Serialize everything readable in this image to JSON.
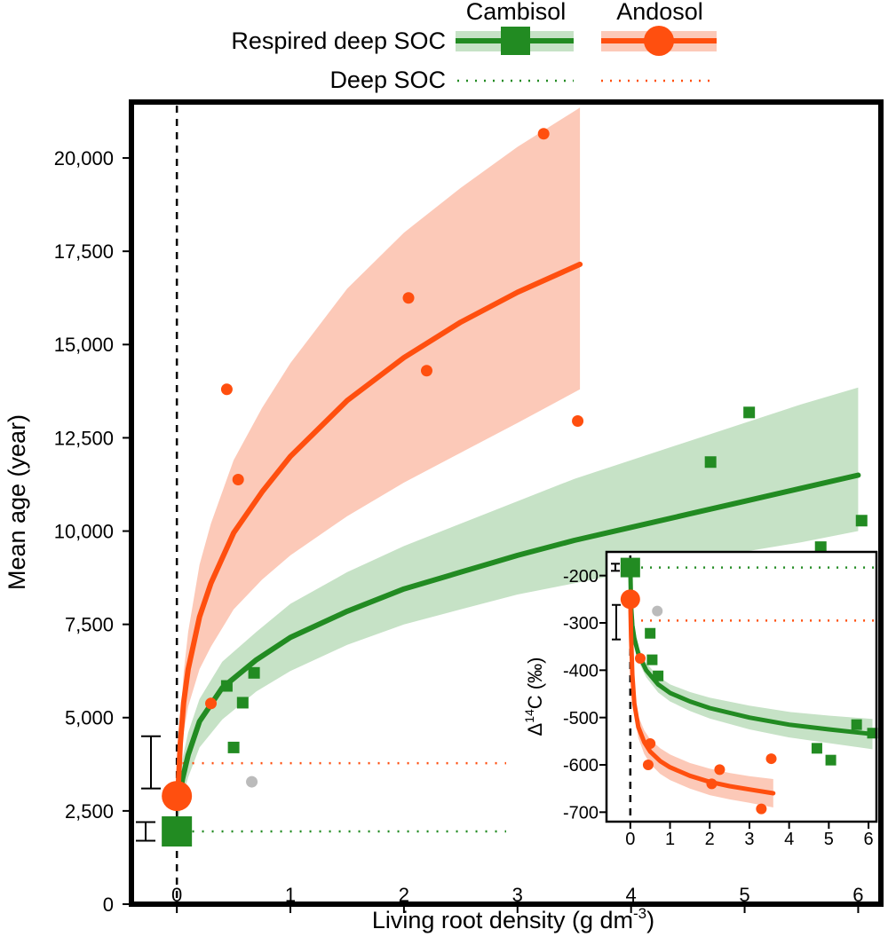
{
  "legend": {
    "header_cambisol": "Cambisol",
    "header_andosol": "Andosol",
    "row1_label": "Respired deep SOC",
    "row2_label": "Deep SOC",
    "placement": "top"
  },
  "colors": {
    "cambisol": "#228b22",
    "cambisol_band": "#c6e2c6",
    "andosol": "#ff4f0f",
    "andosol_band": "#fcc9b8",
    "outlier": "#bbbbbb"
  },
  "chart_data": [
    {
      "type": "scatter",
      "panel": "main",
      "xlabel": "Living root density (g dm",
      "xlabel_sup": "-3",
      "xlabel_close": ")",
      "ylabel": "Mean age (year)",
      "xlim": [
        -0.4,
        6.2
      ],
      "ylim": [
        0,
        21500
      ],
      "x_ticks": [
        0,
        1,
        2,
        3,
        4,
        5,
        6
      ],
      "x_tick_labels": [
        "0",
        "1",
        "2",
        "3",
        "4",
        "5",
        "6"
      ],
      "y_ticks": [
        0,
        2500,
        5000,
        7500,
        10000,
        12500,
        15000,
        17500,
        20000
      ],
      "y_tick_labels": [
        "0",
        "2,500",
        "5,000",
        "7,500",
        "10,000",
        "12,500",
        "15,000",
        "17,500",
        "20,000"
      ],
      "grid": false,
      "series": [
        {
          "name": "Cambisol",
          "marker": "square",
          "points": [
            [
              0.44,
              5850
            ],
            [
              0.58,
              5400
            ],
            [
              0.68,
              6200
            ],
            [
              0.5,
              4200
            ],
            [
              4.7,
              11850
            ],
            [
              5.04,
              13180
            ],
            [
              5.67,
              9570
            ],
            [
              6.03,
              10280
            ]
          ],
          "curve": {
            "x": [
              0.01,
              0.05,
              0.1,
              0.2,
              0.4,
              0.7,
              1.0,
              1.5,
              2.0,
              2.5,
              3.0,
              3.5,
              4.0,
              4.5,
              5.0,
              5.5,
              6.0
            ],
            "y": [
              2600,
              3350,
              4000,
              4900,
              5800,
              6550,
              7150,
              7850,
              8450,
              8900,
              9350,
              9750,
              10100,
              10450,
              10800,
              11150,
              11500
            ]
          },
          "band_upper": [
            3100,
            3900,
            4600,
            5500,
            6500,
            7300,
            8050,
            8900,
            9600,
            10200,
            10800,
            11400,
            11900,
            12400,
            12900,
            13400,
            13850
          ],
          "band_lower": [
            2200,
            2850,
            3400,
            4200,
            4950,
            5700,
            6250,
            6950,
            7500,
            7900,
            8300,
            8600,
            8900,
            9200,
            9450,
            9700,
            10000
          ],
          "intercept": {
            "x": 0.0,
            "y": 1950
          },
          "deep_soc_level": 1950,
          "error_bar": [
            1700,
            2200
          ]
        },
        {
          "name": "Andosol",
          "marker": "circle",
          "points": [
            [
              0.44,
              13800
            ],
            [
              0.54,
              11380
            ],
            [
              0.3,
              5380
            ],
            [
              2.04,
              16250
            ],
            [
              2.2,
              14300
            ],
            [
              3.23,
              20650
            ],
            [
              3.53,
              12950
            ]
          ],
          "curve": {
            "x": [
              0.01,
              0.03,
              0.06,
              0.1,
              0.2,
              0.3,
              0.5,
              0.75,
              1.0,
              1.5,
              2.0,
              2.5,
              3.0,
              3.55
            ],
            "y": [
              3000,
              4300,
              5400,
              6300,
              7700,
              8600,
              9950,
              11050,
              12000,
              13500,
              14650,
              15600,
              16400,
              17150
            ]
          },
          "band_upper": [
            3400,
            4900,
            6200,
            7300,
            9100,
            10200,
            11900,
            13300,
            14500,
            16500,
            18000,
            19200,
            20300,
            21350
          ],
          "band_lower": [
            2600,
            3700,
            4600,
            5300,
            6300,
            6900,
            7900,
            8700,
            9350,
            10400,
            11300,
            12100,
            12900,
            13800
          ],
          "intercept": {
            "x": 0.0,
            "y": 2900
          },
          "deep_soc_level": 3780,
          "error_bar": [
            3100,
            4500
          ]
        }
      ],
      "outliers": [
        [
          0.66,
          3280
        ]
      ]
    },
    {
      "type": "scatter",
      "panel": "inset",
      "ylabel_prefix": "Δ",
      "ylabel_sup": "14",
      "ylabel_suffix": "C (‰)",
      "xlim": [
        -0.6,
        6.2
      ],
      "ylim": [
        -720,
        -150
      ],
      "x_ticks": [
        0,
        1,
        2,
        3,
        4,
        5,
        6
      ],
      "x_tick_labels": [
        "0",
        "1",
        "2",
        "3",
        "4",
        "5",
        "6"
      ],
      "y_ticks": [
        -200,
        -300,
        -400,
        -500,
        -600,
        -700
      ],
      "y_tick_labels": [
        "-200",
        "-300",
        "-400",
        "-500",
        "-600",
        "-700"
      ],
      "series": [
        {
          "name": "Cambisol",
          "marker": "square",
          "points": [
            [
              0.5,
              -322
            ],
            [
              0.55,
              -378
            ],
            [
              0.7,
              -412
            ],
            [
              4.7,
              -565
            ],
            [
              5.05,
              -590
            ],
            [
              5.7,
              -515
            ],
            [
              6.1,
              -533
            ]
          ],
          "curve": {
            "x": [
              0.0,
              0.02,
              0.05,
              0.1,
              0.2,
              0.4,
              0.7,
              1.0,
              1.5,
              2.0,
              3.0,
              4.0,
              5.0,
              6.1
            ],
            "y": [
              -180,
              -265,
              -305,
              -332,
              -365,
              -400,
              -430,
              -448,
              -466,
              -480,
              -500,
              -515,
              -525,
              -535
            ]
          },
          "band_upper": [
            -180,
            -255,
            -292,
            -318,
            -350,
            -385,
            -413,
            -430,
            -446,
            -458,
            -475,
            -488,
            -496,
            -503
          ],
          "band_lower": [
            -180,
            -275,
            -318,
            -346,
            -380,
            -415,
            -447,
            -466,
            -486,
            -502,
            -525,
            -542,
            -554,
            -567
          ],
          "intercept": {
            "x": 0.0,
            "y": -183
          },
          "deep_soc_level": -183,
          "error_bar": [
            -175,
            -190
          ]
        },
        {
          "name": "Andosol",
          "marker": "circle",
          "points": [
            [
              0.25,
              -375
            ],
            [
              0.5,
              -555
            ],
            [
              0.45,
              -600
            ],
            [
              2.05,
              -640
            ],
            [
              2.25,
              -610
            ],
            [
              3.55,
              -587
            ],
            [
              3.3,
              -693
            ]
          ],
          "curve": {
            "x": [
              0.0,
              0.02,
              0.05,
              0.1,
              0.2,
              0.35,
              0.5,
              0.75,
              1.0,
              1.5,
              2.0,
              2.5,
              3.0,
              3.6
            ],
            "y": [
              -250,
              -330,
              -410,
              -470,
              -520,
              -552,
              -572,
              -592,
              -605,
              -623,
              -636,
              -645,
              -652,
              -660
            ]
          },
          "band_upper": [
            -245,
            -315,
            -390,
            -448,
            -497,
            -527,
            -546,
            -565,
            -578,
            -596,
            -608,
            -617,
            -624,
            -630
          ],
          "band_lower": [
            -255,
            -345,
            -430,
            -492,
            -543,
            -577,
            -598,
            -619,
            -632,
            -650,
            -664,
            -673,
            -680,
            -690
          ],
          "intercept": {
            "x": 0.0,
            "y": -250
          },
          "deep_soc_level": -295,
          "error_bar": [
            -262,
            -335
          ]
        }
      ],
      "outliers": [
        [
          0.68,
          -275
        ]
      ]
    }
  ]
}
